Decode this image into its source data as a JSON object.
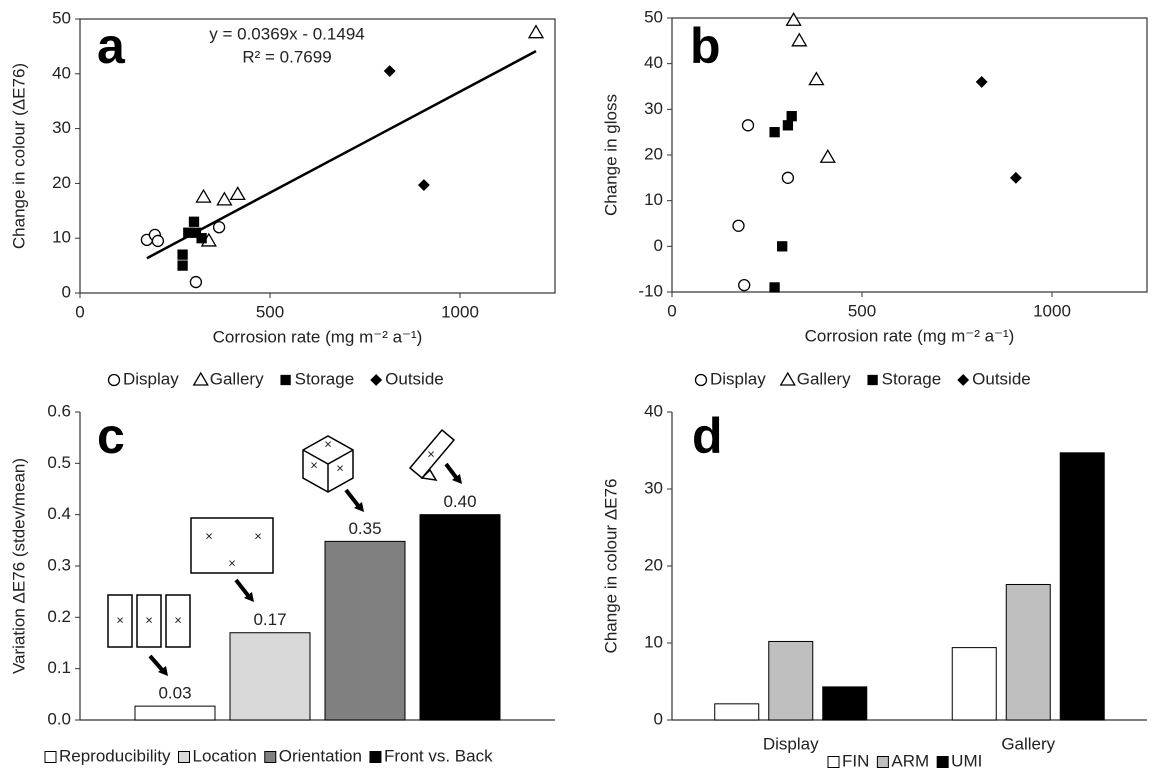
{
  "chart_data": [
    {
      "type": "scatter",
      "panel_label": "a",
      "x_label": "Corrosion rate (mg m⁻² a⁻¹)",
      "y_label": "Change in colour (ΔE76)",
      "annotations": [
        "y = 0.0369x - 0.1494",
        "R² = 0.7699"
      ],
      "trendline": {
        "slope": 0.0369,
        "intercept": -0.1494
      },
      "xlim": [
        0,
        1250
      ],
      "xticks": [
        0,
        500,
        1000
      ],
      "ylim": [
        0,
        50
      ],
      "yticks": [
        0,
        10,
        20,
        30,
        40,
        50
      ],
      "series": [
        {
          "name": "Display",
          "marker": "circle",
          "color": "#000000",
          "filled": false,
          "x": [
            176,
            197,
            205,
            305,
            366
          ],
          "y": [
            9.7,
            10.6,
            9.5,
            2,
            12
          ]
        },
        {
          "name": "Gallery",
          "marker": "triangle",
          "color": "#000000",
          "filled": false,
          "x": [
            325,
            339,
            380,
            415,
            1200
          ],
          "y": [
            17.5,
            9.5,
            17,
            18,
            47.5
          ]
        },
        {
          "name": "Storage",
          "marker": "square",
          "color": "#000000",
          "filled": true,
          "x": [
            300,
            305,
            285,
            320,
            270,
            270
          ],
          "y": [
            13,
            11,
            11,
            10,
            7,
            5
          ]
        },
        {
          "name": "Outside",
          "marker": "diamond",
          "color": "#000000",
          "filled": true,
          "x": [
            815,
            905
          ],
          "y": [
            40.5,
            19.7
          ]
        }
      ]
    },
    {
      "type": "scatter",
      "panel_label": "b",
      "x_label": "Corrosion rate (mg m⁻² a⁻¹)",
      "y_label": "Change in gloss",
      "xlim": [
        0,
        1250
      ],
      "xticks": [
        0,
        500,
        1000
      ],
      "ylim": [
        -10,
        50
      ],
      "yticks": [
        -10,
        0,
        10,
        20,
        30,
        40,
        50
      ],
      "series": [
        {
          "name": "Display",
          "marker": "circle",
          "color": "#000000",
          "filled": false,
          "x": [
            200,
            305,
            175,
            190
          ],
          "y": [
            26.5,
            15,
            4.5,
            -8.5
          ]
        },
        {
          "name": "Gallery",
          "marker": "triangle",
          "color": "#000000",
          "filled": false,
          "x": [
            320,
            335,
            380,
            410
          ],
          "y": [
            49.5,
            45,
            36.5,
            19.5
          ]
        },
        {
          "name": "Storage",
          "marker": "square",
          "color": "#000000",
          "filled": true,
          "x": [
            270,
            305,
            315,
            290,
            270
          ],
          "y": [
            25,
            26.5,
            28.5,
            0,
            -9
          ]
        },
        {
          "name": "Outside",
          "marker": "diamond",
          "color": "#000000",
          "filled": true,
          "x": [
            815,
            905
          ],
          "y": [
            36,
            15
          ]
        }
      ]
    },
    {
      "type": "bar",
      "panel_label": "c",
      "y_label": "Variation ΔE76 (stdev/mean)",
      "ylim": [
        0,
        0.6
      ],
      "yticks": [
        {
          "value": 0,
          "label": "0.0"
        },
        0.1,
        0.2,
        0.3,
        0.4,
        0.5,
        0.6
      ],
      "series": [
        {
          "name": "Reproducibility",
          "color": "#ffffff",
          "values": [
            0.027
          ],
          "value_labels": [
            "0.03"
          ]
        },
        {
          "name": "Location",
          "color": "#d9d9d9",
          "values": [
            0.17
          ],
          "value_labels": [
            "0.17"
          ]
        },
        {
          "name": "Orientation",
          "color": "#808080",
          "values": [
            0.348
          ],
          "value_labels": [
            "0.35"
          ]
        },
        {
          "name": "Front vs. Back",
          "color": "#000000",
          "values": [
            0.4
          ],
          "value_labels": [
            "0.40"
          ]
        }
      ]
    },
    {
      "type": "bar",
      "panel_label": "d",
      "y_label": "Change in colour ΔE76",
      "categories": [
        "Display",
        "Gallery"
      ],
      "ylim": [
        0,
        40
      ],
      "yticks": [
        0,
        10,
        20,
        30,
        40
      ],
      "series": [
        {
          "name": "FIN",
          "color": "#ffffff",
          "values": [
            2.1,
            9.4
          ]
        },
        {
          "name": "ARM",
          "color": "#bfbfbf",
          "values": [
            10.2,
            17.6
          ]
        },
        {
          "name": "UMI",
          "color": "#000000",
          "values": [
            4.3,
            34.7
          ]
        }
      ]
    }
  ]
}
